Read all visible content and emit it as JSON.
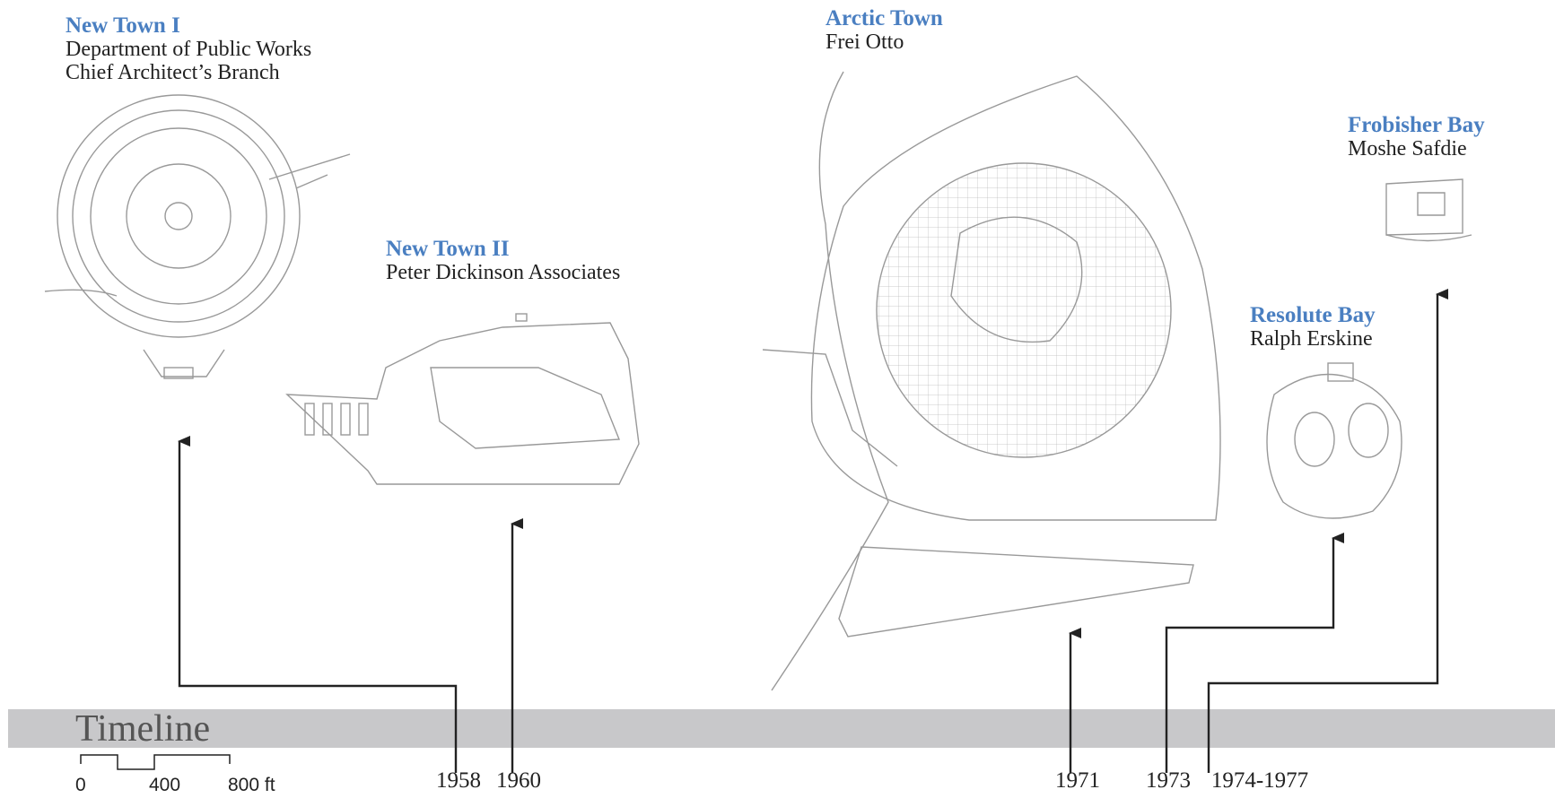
{
  "projects": [
    {
      "name": "New Town I",
      "credits": [
        "Department of Public Works",
        "Chief Architect’s Branch"
      ]
    },
    {
      "name": "New Town II",
      "credits": [
        "Peter Dickinson Associates"
      ]
    },
    {
      "name": "Arctic Town",
      "credits": [
        "Frei Otto"
      ]
    },
    {
      "name": "Frobisher Bay",
      "credits": [
        "Moshe Safdie"
      ]
    },
    {
      "name": "Resolute Bay",
      "credits": [
        "Ralph Erskine"
      ]
    }
  ],
  "timeline": {
    "title": "Timeline",
    "years": [
      "1958",
      "1960",
      "1971",
      "1973",
      "1974-1977"
    ]
  },
  "scale": {
    "labels": [
      "0",
      "400",
      "800 ft"
    ]
  }
}
